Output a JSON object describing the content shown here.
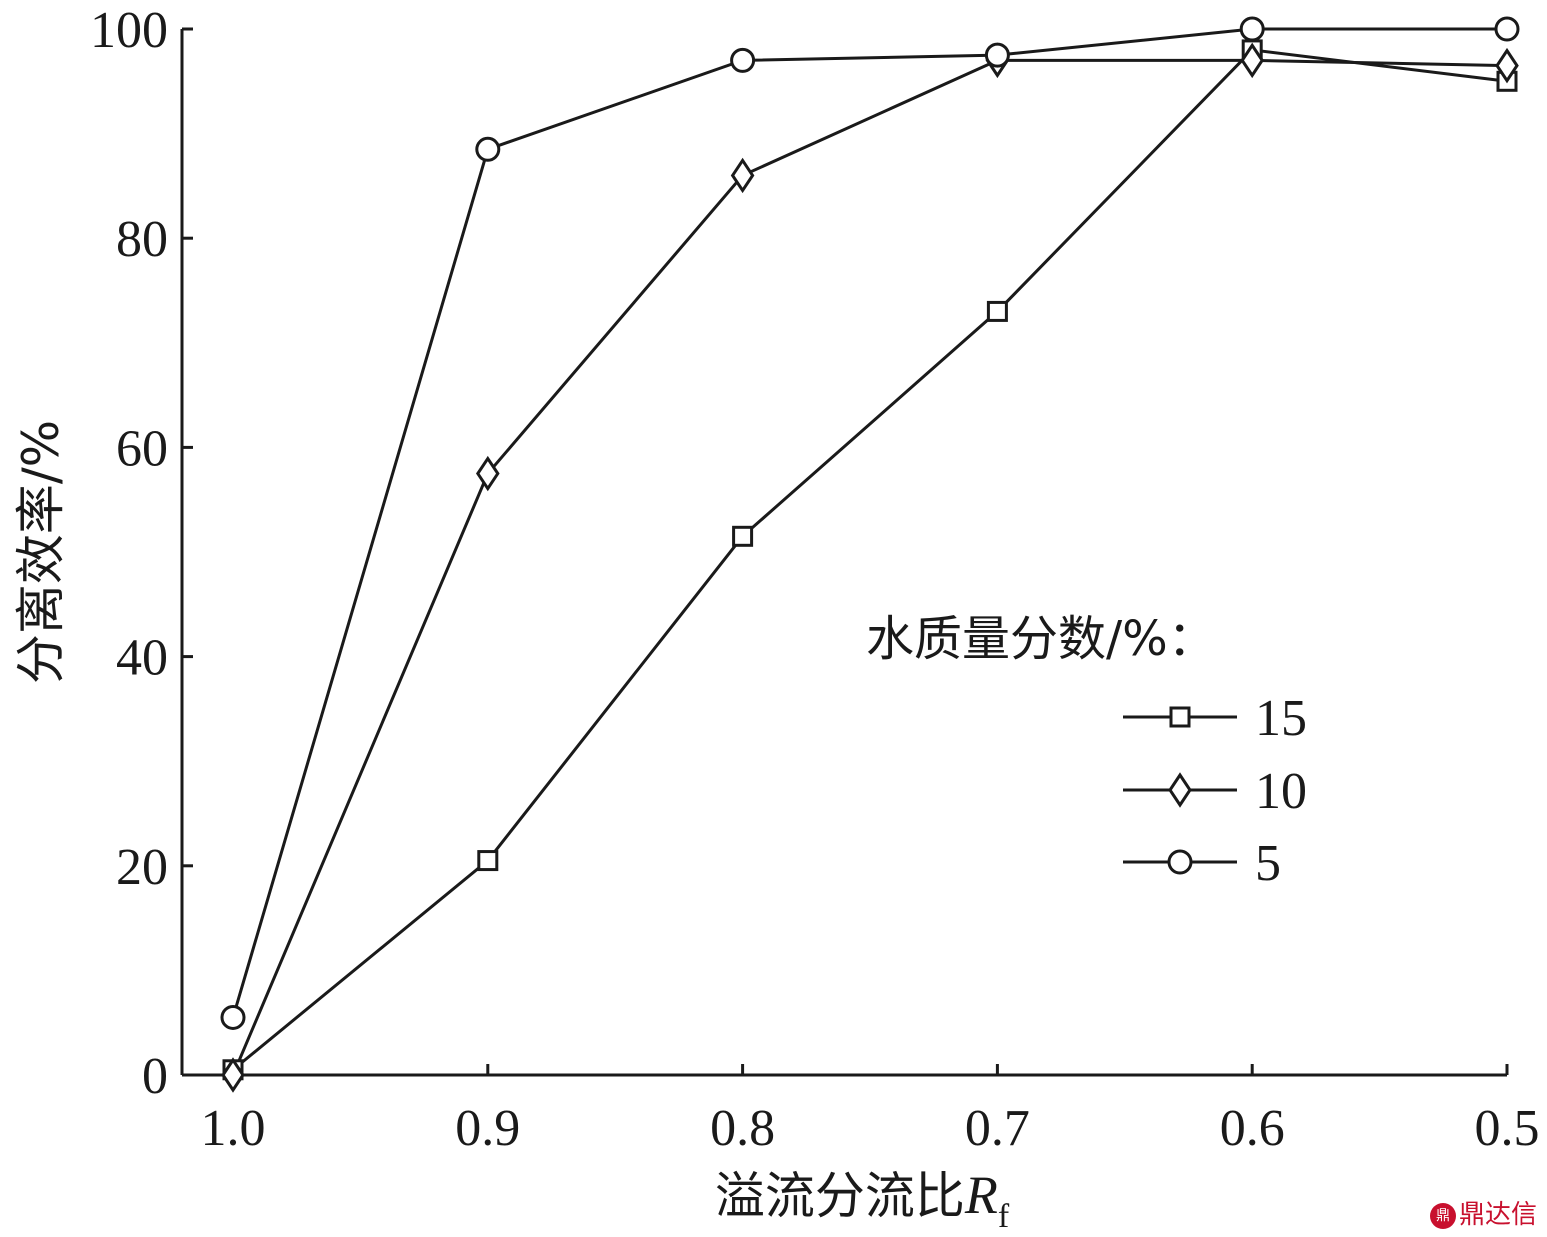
{
  "chart_data": {
    "type": "line",
    "xlabel_main": "溢流分流比",
    "xlabel_symbol": "R",
    "xlabel_sub": "f",
    "ylabel": "分离效率/%",
    "x_ticks": [
      "1.0",
      "0.9",
      "0.8",
      "0.7",
      "0.6",
      "0.5"
    ],
    "y_ticks": [
      "0",
      "20",
      "40",
      "60",
      "80",
      "100"
    ],
    "xlim": [
      1.0,
      0.5
    ],
    "ylim": [
      0,
      100
    ],
    "x": [
      1.0,
      0.9,
      0.8,
      0.7,
      0.6,
      0.5
    ],
    "legend_title": "水质量分数/%：",
    "legend_position": "right-center",
    "grid": false,
    "series": [
      {
        "name": "15",
        "marker": "square",
        "values": [
          0.5,
          20.5,
          51.5,
          73,
          98,
          95
        ]
      },
      {
        "name": "10",
        "marker": "diamond",
        "values": [
          0,
          57.5,
          86,
          97,
          97,
          96.5
        ]
      },
      {
        "name": "5",
        "marker": "circle",
        "values": [
          5.5,
          88.5,
          97,
          97.5,
          100,
          100
        ]
      }
    ],
    "line_color": "#1a1a1a"
  },
  "watermark": {
    "badge": "鼎",
    "text": "鼎达信"
  }
}
